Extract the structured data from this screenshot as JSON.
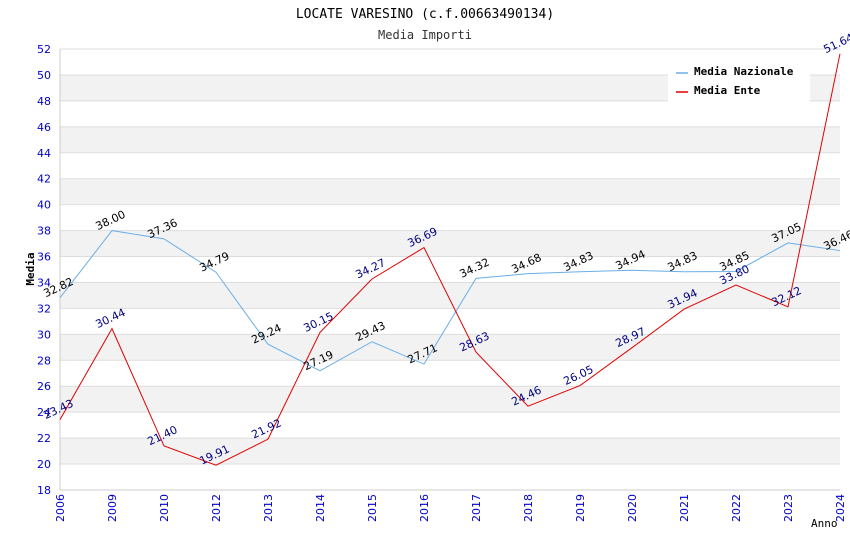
{
  "chart_data": {
    "type": "line",
    "title": "LOCATE VARESINO (c.f.00663490134)",
    "subtitle": "Media Importi",
    "xlabel": "Anno",
    "ylabel": "Media",
    "ylim": [
      18,
      52
    ],
    "ystep": 2,
    "grid": true,
    "legend_position": "top-right",
    "categories": [
      "2006",
      "2009",
      "2010",
      "2012",
      "2013",
      "2014",
      "2015",
      "2016",
      "2017",
      "2018",
      "2019",
      "2020",
      "2021",
      "2022",
      "2023",
      "2024"
    ],
    "series": [
      {
        "name": "Media Nazionale",
        "color": "#6aaee8",
        "label_color": "#000000",
        "values": [
          32.82,
          38.0,
          37.36,
          34.79,
          29.24,
          27.19,
          29.43,
          27.71,
          34.32,
          34.68,
          34.83,
          34.94,
          34.83,
          34.85,
          37.05,
          36.46
        ],
        "labels": [
          "32.82",
          "38.00",
          "37.36",
          "34.79",
          "29.24",
          "27.19",
          "29.43",
          "27.71",
          "34.32",
          "34.68",
          "34.83",
          "34.94",
          "34.83",
          "34.85",
          "37.05",
          "36.46"
        ]
      },
      {
        "name": "Media Ente",
        "color": "#e00000",
        "label_color": "#000080",
        "values": [
          23.43,
          30.44,
          21.4,
          19.91,
          21.92,
          30.15,
          34.27,
          36.69,
          28.63,
          24.46,
          26.05,
          28.97,
          31.94,
          33.8,
          32.12,
          51.64
        ],
        "labels": [
          "23.43",
          "30.44",
          "21.40",
          "19.91",
          "21.92",
          "30.15",
          "34.27",
          "36.69",
          "28.63",
          "24.46",
          "26.05",
          "28.97",
          "31.94",
          "33.80",
          "32.12",
          "51.64"
        ]
      }
    ]
  }
}
